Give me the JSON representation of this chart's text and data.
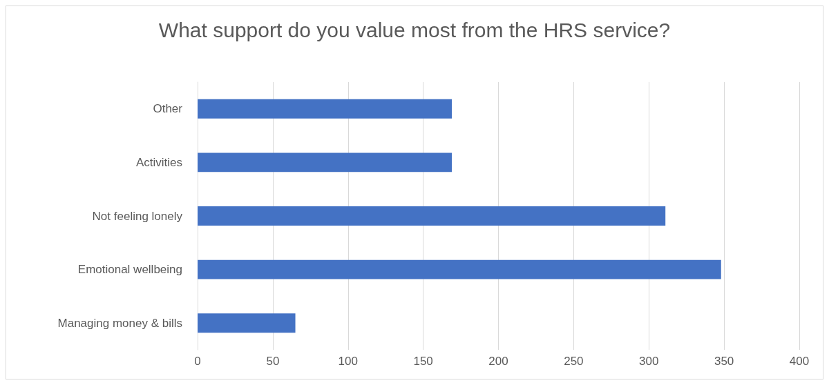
{
  "chart_data": {
    "type": "bar",
    "orientation": "horizontal",
    "title": "What support do you value most from the HRS service?",
    "categories": [
      "Other",
      "Activities",
      "Not feeling lonely",
      "Emotional wellbeing",
      "Managing money & bills"
    ],
    "values": [
      169,
      169,
      311,
      348,
      65
    ],
    "color": "#4472c4",
    "xlim": [
      0,
      400
    ],
    "xticks": [
      0,
      50,
      100,
      150,
      200,
      250,
      300,
      350,
      400
    ],
    "grid": "x"
  }
}
